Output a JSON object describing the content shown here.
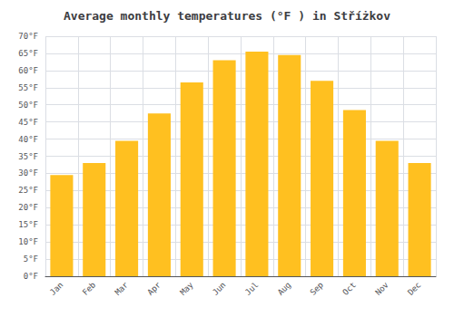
{
  "chart_data": {
    "type": "bar",
    "title": "Average monthly temperatures (°F ) in Stříżkov",
    "categories": [
      "Jan",
      "Feb",
      "Mar",
      "Apr",
      "May",
      "Jun",
      "Jul",
      "Aug",
      "Sep",
      "Oct",
      "Nov",
      "Dec"
    ],
    "values": [
      29.5,
      33.0,
      39.5,
      47.5,
      56.5,
      63.0,
      65.5,
      64.5,
      57.0,
      48.5,
      39.5,
      33.0
    ],
    "color": "#FFC020",
    "ylim": [
      0,
      70
    ],
    "yticks": [
      {
        "value": 0,
        "label": "0°F"
      },
      {
        "value": 5,
        "label": "5°F"
      },
      {
        "value": 10,
        "label": "10°F"
      },
      {
        "value": 15,
        "label": "15°F"
      },
      {
        "value": 20,
        "label": "20°F"
      },
      {
        "value": 25,
        "label": "25°F"
      },
      {
        "value": 30,
        "label": "30°F"
      },
      {
        "value": 35,
        "label": "35°F"
      },
      {
        "value": 40,
        "label": "40°F"
      },
      {
        "value": 45,
        "label": "45°F"
      },
      {
        "value": 50,
        "label": "50°F"
      },
      {
        "value": 55,
        "label": "55°F"
      },
      {
        "value": 60,
        "label": "60°F"
      },
      {
        "value": 65,
        "label": "65°F"
      },
      {
        "value": 70,
        "label": "70°F"
      }
    ],
    "grid": true
  }
}
